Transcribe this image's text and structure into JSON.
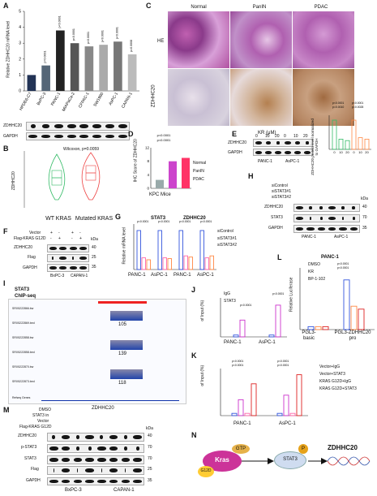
{
  "panels": {
    "a": "A",
    "b": "B",
    "c": "C",
    "d": "D",
    "e": "E",
    "f": "F",
    "g": "G",
    "h": "H",
    "i": "I",
    "j": "J",
    "k": "K",
    "l": "L",
    "m": "M",
    "n": "N"
  },
  "A": {
    "ylabel": "Relative ZDHHC20 mRNA level",
    "cells": [
      "HPDE6-C7",
      "BxPC-3",
      "PANC-1",
      "MIAPaCa-2",
      "CFPAC-1",
      "SW1990",
      "AsPC-1",
      "CAPAN-1"
    ],
    "values": [
      1.0,
      1.6,
      3.8,
      3.0,
      2.8,
      2.9,
      3.1,
      2.3
    ],
    "pvals": [
      "",
      "p=0.0001",
      "p<0.0001",
      "p<0.0001",
      "p<0.0001",
      "p<0.0001",
      "p<0.0001",
      "p=0.0008"
    ],
    "ylim": [
      0,
      5
    ],
    "blot_labels": [
      "ZDHHC20",
      "GAPDH"
    ]
  },
  "B": {
    "ylabel": "ZDHHC20",
    "groups": [
      "WT KRAS",
      "Mutated KRAS"
    ],
    "test": "Wilcoxon, p=0.0059"
  },
  "C": {
    "cols": [
      "Normal",
      "PanIN",
      "PDAC"
    ],
    "rows": [
      "HE",
      "ZDHHC20"
    ]
  },
  "D": {
    "ylabel": "IHC Score of ZDHHC20",
    "p1": "p<0.0001",
    "p2": "p<0.0001",
    "xlabel": "KPC Mice",
    "legend": [
      "Normal",
      "PanIN",
      "PDAC"
    ],
    "values": [
      2.5,
      8.0,
      9.0
    ],
    "ylim": [
      0,
      12
    ]
  },
  "E": {
    "head": "KR (μM)",
    "doses": [
      "0",
      "10",
      "20",
      "0",
      "10",
      "20"
    ],
    "blots": [
      "ZDHHC20",
      "GAPDH"
    ],
    "lines": [
      "PANC-1",
      "AsPC-1"
    ],
    "ylabel": "ZDHHC20 protein level normalized to GAPDH",
    "p": [
      "p<0.0001",
      "p=0.0010",
      "p<0.0001",
      "p=0.0028"
    ],
    "xt": [
      "0",
      "10",
      "20",
      "0",
      "10",
      "20"
    ]
  },
  "F": {
    "rows": [
      "Vector",
      "Flag-KRAS G12D"
    ],
    "blots": [
      "ZDHHC20",
      "Flag",
      "GAPDH"
    ],
    "lines": [
      "BxPC-3",
      "CAPAN-1"
    ],
    "kda": "kDa",
    "mw": [
      "40",
      "25",
      "35"
    ],
    "signs": [
      "+",
      "-",
      "+",
      "-",
      "-",
      "+",
      "-",
      "+"
    ]
  },
  "G": {
    "titles": [
      "STAT3",
      "ZDHHC20"
    ],
    "ylabel": "Relative mRNA level",
    "cells": [
      "PANC-1",
      "AsPC-1",
      "PANC-1",
      "AsPC-1"
    ],
    "legend": [
      "siControl",
      "siSTAT3#1",
      "siSTAT3#2"
    ],
    "pvals": [
      "p<0.0001",
      "p<0.0001",
      "p<0.0001",
      "p<0.0001"
    ]
  },
  "H": {
    "rows": [
      "siControl",
      "siSTAT3#1",
      "siSTAT3#2"
    ],
    "blots": [
      "ZDHHC20",
      "STAT3",
      "GAPDH"
    ],
    "lines": [
      "PANC-1",
      "AsPC-1"
    ],
    "kda": "kDa",
    "mw": [
      "40",
      "70",
      "35"
    ]
  },
  "I": {
    "title": "STAT3",
    "title2": "ChIP-seq",
    "tracks": [
      "SRX5222866.bw",
      "SRX5222869.bed",
      "SRX5222858.bw",
      "SRX5222858.bed",
      "SRX5222870.bw",
      "SRX5222873.bed"
    ],
    "peaks": [
      "105",
      "139",
      "118"
    ],
    "refseq": "Refseq Genes",
    "gene": "ZDHHC20"
  },
  "J": {
    "ylabel": "of Input (%)",
    "legend": [
      "IgG",
      "STAT3"
    ],
    "cells": [
      "PANC-1",
      "AsPC-1"
    ],
    "p": [
      "p<0.0001",
      "p<0.0001"
    ]
  },
  "K": {
    "ylabel": "of Input (%)",
    "legend": [
      "Vector+IgG",
      "Vector+STAT3",
      "KRAS G12D+IgG",
      "KRAS G12D+STAT3"
    ],
    "cells": [
      "PANC-1",
      "AsPC-1"
    ],
    "p": [
      "p<0.0001",
      "p<0.0001",
      "p<0.0001",
      "p<0.0001"
    ]
  },
  "L": {
    "title": "PANC-1",
    "ylabel": "Relative Luciferase",
    "legend": [
      "DMSO",
      "KR",
      "BP-1-102"
    ],
    "cells": [
      "PGL3-basic",
      "PGL3-ZDHHC20 pro"
    ],
    "p": [
      "p<0.0001",
      "p<0.0001"
    ]
  },
  "M": {
    "rows": [
      "DMSO",
      "STAT3 in",
      "Vector",
      "Flag-KRAS G12D"
    ],
    "blots": [
      "ZDHHC20",
      "p-STAT3",
      "STAT3",
      "Flag",
      "GAPDH"
    ],
    "lines": [
      "BxPC-3",
      "CAPAN-1"
    ],
    "kda": "kDa",
    "mw": [
      "40",
      "70",
      "70",
      "25",
      "35"
    ]
  },
  "N": {
    "kras": "Kras",
    "gtp": "GTP",
    "g12d": "G12D",
    "stat3": "STAT3",
    "p": "P",
    "gene": "ZDHHC20"
  },
  "colors": {
    "magenta": "#cc33cc",
    "blue": "#3355dd",
    "orange": "#ff8844",
    "red": "#dd2222",
    "green": "#33bb66"
  }
}
